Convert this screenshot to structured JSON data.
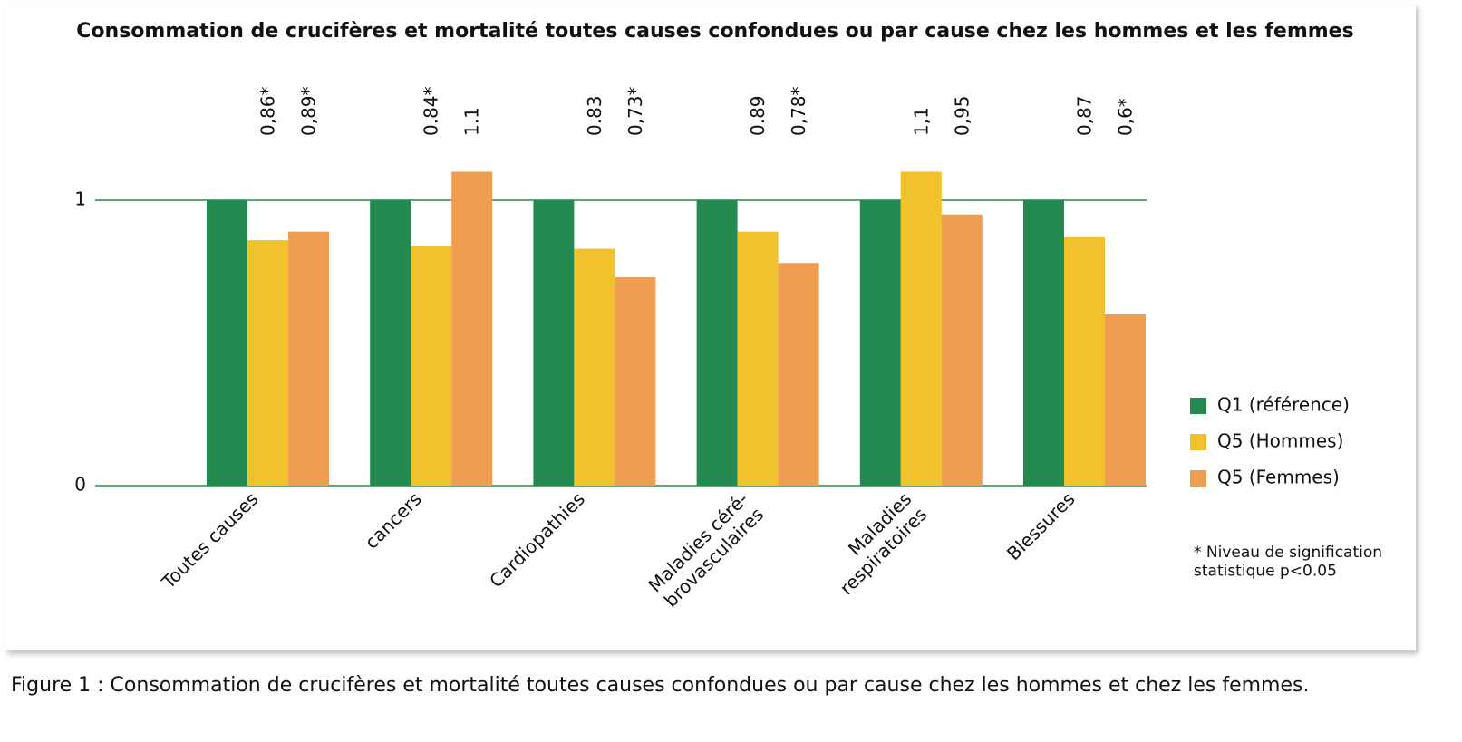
{
  "chart_data": {
    "type": "bar",
    "title": "Consommation de crucifères et mortalité toutes causes confondues ou par cause chez les hommes et les femmes",
    "caption": "Figure 1 : Consommation de crucifères et mortalité toutes causes confondues ou par cause chez les hommes et chez les femmes.",
    "note": "* Niveau de signification\nstatistique p<0.05",
    "categories": [
      "Toutes causes",
      "cancers",
      "Cardiopathies",
      "Maladies céré-\nbrovasculaires",
      "Maladies\nrespiratoires",
      "Blessures"
    ],
    "series": [
      {
        "name": "Q1 (référence)",
        "color": "#238b4f",
        "values": [
          1,
          1,
          1,
          1,
          1,
          1
        ]
      },
      {
        "name": "Q5 (Hommes)",
        "color": "#f2c12e",
        "values": [
          0.86,
          0.84,
          0.83,
          0.89,
          1.1,
          0.87
        ],
        "value_labels": [
          "0,86*",
          "0.84*",
          "0.83",
          "0.89",
          "1,1",
          "0,87"
        ]
      },
      {
        "name": "Q5 (Femmes)",
        "color": "#ef9d51",
        "values": [
          0.89,
          1.1,
          0.73,
          0.78,
          0.95,
          0.6
        ],
        "value_labels": [
          "0,89*",
          "1.1",
          "0,73*",
          "0,78*",
          "0,95",
          "0,6*"
        ]
      }
    ],
    "ylim": [
      0,
      1.2
    ],
    "yticks": [
      0,
      1
    ],
    "grid": true,
    "grid_color": "#238b4f",
    "legend": "right"
  }
}
